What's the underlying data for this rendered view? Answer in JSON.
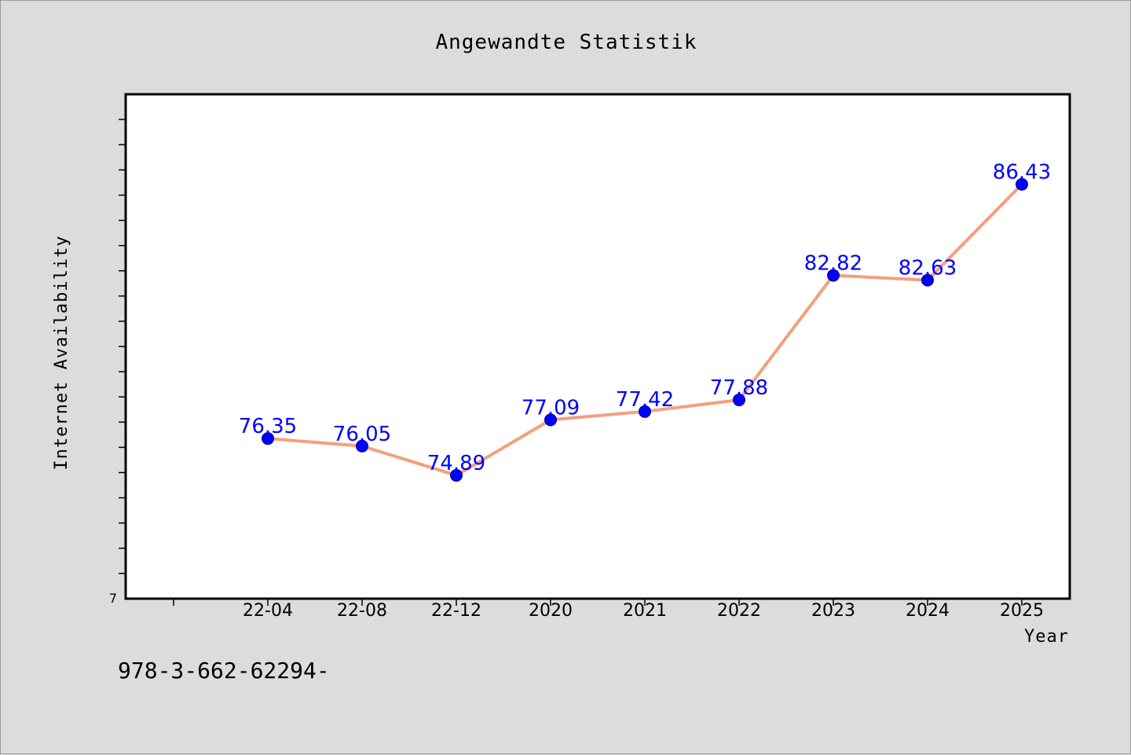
{
  "chart_data": {
    "type": "line",
    "title": "Angewandte Statistik",
    "xlabel": "Year",
    "ylabel": "Internet Availability",
    "categories": [
      "22-04",
      "22-08",
      "22-12",
      "2020",
      "2021",
      "2022",
      "2023",
      "2024",
      "2025"
    ],
    "series": [
      {
        "values": [
          76.35,
          76.05,
          74.89,
          77.09,
          77.42,
          77.88,
          82.82,
          82.63,
          86.43
        ]
      }
    ],
    "data_labels": [
      "76.35",
      "76.05",
      "74.89",
      "77.09",
      "77.42",
      "77.88",
      "82.82",
      "82.63",
      "86.43"
    ],
    "ylim": [
      70,
      90
    ],
    "y_tick_label": "7",
    "grid": false,
    "colors": {
      "line": "#f4a07c",
      "marker": "#0000ff",
      "label": "#0000ff"
    }
  },
  "footnote": "978-3-662-62294-"
}
